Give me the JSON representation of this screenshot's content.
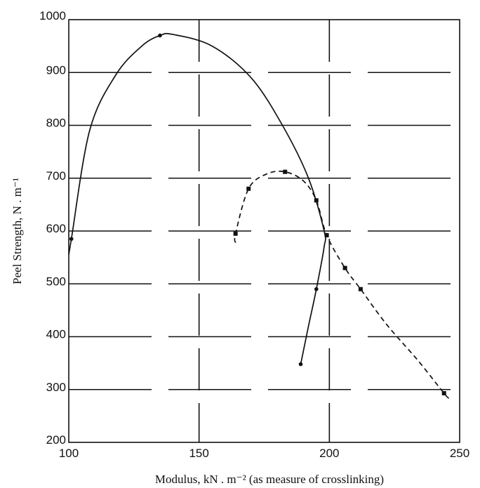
{
  "chart_data": {
    "type": "line",
    "title": "",
    "xlabel": "Modulus, kN . m⁻² (as measure of crosslinking)",
    "ylabel": "Peel Strength, N . m⁻¹",
    "xlim": [
      100,
      250
    ],
    "ylim": [
      200,
      1000
    ],
    "x_ticks": [
      100,
      150,
      200,
      250
    ],
    "y_ticks": [
      200,
      300,
      400,
      500,
      600,
      700,
      800,
      900,
      1000
    ],
    "grid": true,
    "legend": "none",
    "series": [
      {
        "style": "solid",
        "color": "#111111",
        "points": [
          {
            "x": 100,
            "y": 555,
            "marker": false
          },
          {
            "x": 101,
            "y": 585,
            "marker": true
          },
          {
            "x": 108,
            "y": 790,
            "marker": false
          },
          {
            "x": 118,
            "y": 895,
            "marker": false
          },
          {
            "x": 128,
            "y": 950,
            "marker": false
          },
          {
            "x": 135,
            "y": 970,
            "marker": true
          },
          {
            "x": 140,
            "y": 972,
            "marker": false
          },
          {
            "x": 155,
            "y": 950,
            "marker": false
          },
          {
            "x": 170,
            "y": 890,
            "marker": false
          },
          {
            "x": 182,
            "y": 800,
            "marker": false
          },
          {
            "x": 192,
            "y": 700,
            "marker": false
          },
          {
            "x": 198,
            "y": 600,
            "marker": false
          },
          {
            "x": 198,
            "y": 570,
            "marker": false
          },
          {
            "x": 195,
            "y": 490,
            "marker": true
          },
          {
            "x": 192,
            "y": 420,
            "marker": false
          },
          {
            "x": 189,
            "y": 348,
            "marker": true
          }
        ]
      },
      {
        "style": "dashed",
        "color": "#111111",
        "points": [
          {
            "x": 164,
            "y": 578,
            "marker": false
          },
          {
            "x": 164,
            "y": 595,
            "marker": true
          },
          {
            "x": 169,
            "y": 680,
            "marker": true
          },
          {
            "x": 176,
            "y": 708,
            "marker": false
          },
          {
            "x": 183,
            "y": 712,
            "marker": true
          },
          {
            "x": 190,
            "y": 695,
            "marker": false
          },
          {
            "x": 195,
            "y": 658,
            "marker": true
          },
          {
            "x": 199,
            "y": 592,
            "marker": true
          },
          {
            "x": 206,
            "y": 530,
            "marker": true
          },
          {
            "x": 212,
            "y": 490,
            "marker": true
          },
          {
            "x": 222,
            "y": 423,
            "marker": false
          },
          {
            "x": 234,
            "y": 355,
            "marker": false
          },
          {
            "x": 244,
            "y": 293,
            "marker": true
          },
          {
            "x": 246,
            "y": 283,
            "marker": false
          }
        ]
      }
    ]
  }
}
